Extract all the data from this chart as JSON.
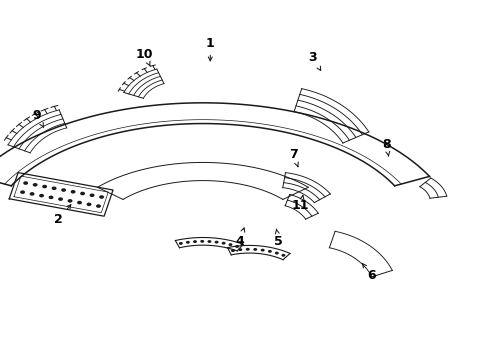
{
  "background_color": "#ffffff",
  "line_color": "#1a1a1a",
  "text_color": "#000000",
  "parts_labels": {
    "1": [
      0.43,
      0.88,
      0.43,
      0.82
    ],
    "2": [
      0.12,
      0.39,
      0.15,
      0.44
    ],
    "3": [
      0.64,
      0.84,
      0.66,
      0.795
    ],
    "4": [
      0.49,
      0.33,
      0.5,
      0.37
    ],
    "5": [
      0.57,
      0.33,
      0.565,
      0.365
    ],
    "6": [
      0.76,
      0.235,
      0.74,
      0.27
    ],
    "7": [
      0.6,
      0.57,
      0.61,
      0.535
    ],
    "8": [
      0.79,
      0.6,
      0.795,
      0.565
    ],
    "9": [
      0.075,
      0.68,
      0.09,
      0.645
    ],
    "10": [
      0.295,
      0.85,
      0.31,
      0.808
    ],
    "11": [
      0.615,
      0.43,
      0.62,
      0.46
    ]
  }
}
